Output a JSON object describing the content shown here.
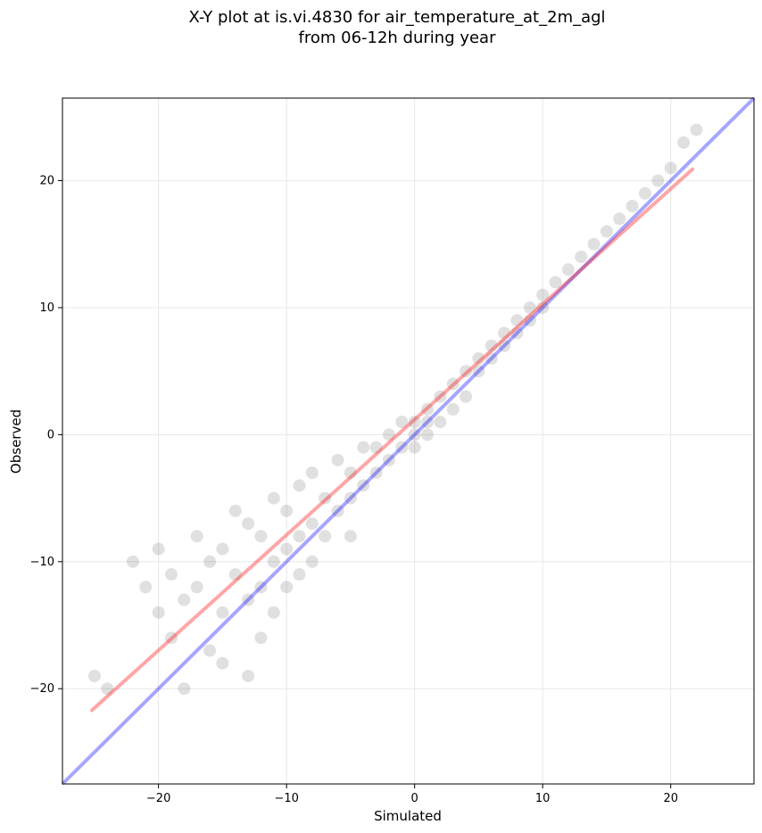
{
  "chart_data": {
    "type": "scatter",
    "title_line1": "X-Y plot at is.vi.4830 for air_temperature_at_2m_agl",
    "title_line2": "from 06-12h during year",
    "xlabel": "Simulated",
    "ylabel": "Observed",
    "xlim": [
      -27.5,
      26.5
    ],
    "ylim": [
      -27.5,
      26.5
    ],
    "xticks": [
      -20,
      -10,
      0,
      10,
      20
    ],
    "yticks": [
      -20,
      -10,
      0,
      10,
      20
    ],
    "grid": true,
    "point_color": "#000000",
    "identity_line_color": "#0000ff",
    "fit_line_color": "#ff0000",
    "identity_line": {
      "x": [
        -27.5,
        26.5
      ],
      "y": [
        -27.5,
        26.5
      ]
    },
    "fit_line": {
      "x": [
        -25.2,
        21.7
      ],
      "y": [
        -21.7,
        20.9
      ]
    },
    "points": [
      [
        -25,
        -19
      ],
      [
        -24,
        -20
      ],
      [
        -22,
        -10
      ],
      [
        -21,
        -12
      ],
      [
        -20,
        -14
      ],
      [
        -20,
        -9
      ],
      [
        -19,
        -11
      ],
      [
        -19,
        -16
      ],
      [
        -18,
        -13
      ],
      [
        -18,
        -20
      ],
      [
        -17,
        -8
      ],
      [
        -17,
        -12
      ],
      [
        -16,
        -10
      ],
      [
        -16,
        -17
      ],
      [
        -15,
        -9
      ],
      [
        -15,
        -14
      ],
      [
        -15,
        -18
      ],
      [
        -14,
        -6
      ],
      [
        -14,
        -11
      ],
      [
        -13,
        -7
      ],
      [
        -13,
        -13
      ],
      [
        -13,
        -19
      ],
      [
        -12,
        -8
      ],
      [
        -12,
        -12
      ],
      [
        -12,
        -16
      ],
      [
        -11,
        -5
      ],
      [
        -11,
        -10
      ],
      [
        -11,
        -14
      ],
      [
        -10,
        -6
      ],
      [
        -10,
        -9
      ],
      [
        -10,
        -12
      ],
      [
        -9,
        -4
      ],
      [
        -9,
        -8
      ],
      [
        -9,
        -11
      ],
      [
        -8,
        -3
      ],
      [
        -8,
        -7
      ],
      [
        -8,
        -10
      ],
      [
        -7,
        -5
      ],
      [
        -7,
        -8
      ],
      [
        -6,
        -2
      ],
      [
        -6,
        -6
      ],
      [
        -5,
        -3
      ],
      [
        -5,
        -5
      ],
      [
        -5,
        -8
      ],
      [
        -4,
        -1
      ],
      [
        -4,
        -4
      ],
      [
        -3,
        -1
      ],
      [
        -3,
        -3
      ],
      [
        -2,
        0
      ],
      [
        -2,
        -2
      ],
      [
        -1,
        1
      ],
      [
        -1,
        -1
      ],
      [
        0,
        1
      ],
      [
        0,
        0
      ],
      [
        0,
        -1
      ],
      [
        1,
        2
      ],
      [
        1,
        1
      ],
      [
        1,
        0
      ],
      [
        2,
        3
      ],
      [
        2,
        1
      ],
      [
        3,
        4
      ],
      [
        3,
        2
      ],
      [
        4,
        5
      ],
      [
        4,
        3
      ],
      [
        5,
        6
      ],
      [
        5,
        5
      ],
      [
        6,
        7
      ],
      [
        6,
        6
      ],
      [
        7,
        8
      ],
      [
        7,
        7
      ],
      [
        8,
        9
      ],
      [
        8,
        8
      ],
      [
        9,
        10
      ],
      [
        9,
        9
      ],
      [
        10,
        11
      ],
      [
        10,
        10
      ],
      [
        11,
        12
      ],
      [
        12,
        13
      ],
      [
        13,
        14
      ],
      [
        14,
        15
      ],
      [
        15,
        16
      ],
      [
        16,
        17
      ],
      [
        17,
        18
      ],
      [
        18,
        19
      ],
      [
        19,
        20
      ],
      [
        20,
        21
      ],
      [
        21,
        23
      ],
      [
        22,
        24
      ]
    ]
  }
}
